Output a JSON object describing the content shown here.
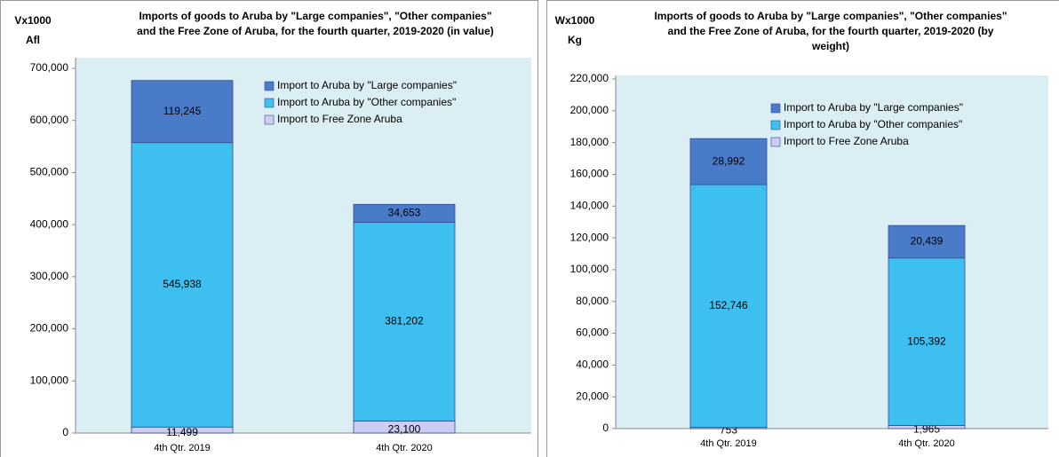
{
  "chart_data": [
    {
      "type": "stacked_bar",
      "title": "Imports of goods to Aruba by \"Large companies\", \"Other companies\"\nand the Free Zone of Aruba, for the fourth quarter, 2019-2020 (in value)",
      "y_label": "Vx1000\nAfl",
      "categories": [
        "4th Qtr. 2019",
        "4th Qtr. 2020"
      ],
      "series": [
        {
          "name": "Import to Free Zone Aruba",
          "color": "#ccccf5",
          "values": [
            11499,
            23100
          ],
          "value_labels": [
            "11,499",
            "23,100"
          ]
        },
        {
          "name": "Import to Aruba by \"Other companies\"",
          "color": "#3dbff0",
          "values": [
            545938,
            381202
          ],
          "value_labels": [
            "545,938",
            "381,202"
          ]
        },
        {
          "name": "Import to Aruba by \"Large companies\"",
          "color": "#4a7bc8",
          "values": [
            119245,
            34653
          ],
          "value_labels": [
            "119,245",
            "34,653"
          ]
        }
      ],
      "ylim": [
        0,
        700000
      ],
      "yticks": [
        0,
        {
          "value": 100000,
          "label": "100,000"
        },
        {
          "value": 200000,
          "label": "200,000"
        },
        {
          "value": 300000,
          "label": "300,000"
        },
        {
          "value": 400000,
          "label": "400,000"
        },
        {
          "value": 500000,
          "label": "500,000"
        },
        {
          "value": 600000,
          "label": "600,000"
        },
        {
          "value": 700000,
          "label": "700,000"
        }
      ],
      "legend": "upper right"
    },
    {
      "type": "stacked_bar",
      "title": "Imports of goods to Aruba by \"Large companies\", \"Other companies\"\nand the Free Zone of Aruba, for the fourth quarter, 2019-2020 (by\nweight)",
      "y_label": "Wx1000\nKg",
      "categories": [
        "4th Qtr. 2019",
        "4th Qtr. 2020"
      ],
      "series": [
        {
          "name": "Import to Free Zone Aruba",
          "color": "#ccccf5",
          "values": [
            753,
            1965
          ],
          "value_labels": [
            "753",
            "1,965"
          ]
        },
        {
          "name": "Import to Aruba by \"Other companies\"",
          "color": "#3dbff0",
          "values": [
            152746,
            105392
          ],
          "value_labels": [
            "152,746",
            "105,392"
          ]
        },
        {
          "name": "Import to Aruba by \"Large companies\"",
          "color": "#4a7bc8",
          "values": [
            28992,
            20439
          ],
          "value_labels": [
            "28,992",
            "20,439"
          ]
        }
      ],
      "ylim": [
        0,
        220000
      ],
      "yticks": [
        0,
        {
          "value": 20000,
          "label": "20,000"
        },
        {
          "value": 40000,
          "label": "40,000"
        },
        {
          "value": 60000,
          "label": "60,000"
        },
        {
          "value": 80000,
          "label": "80,000"
        },
        {
          "value": 100000,
          "label": "100,000"
        },
        {
          "value": 120000,
          "label": "120,000"
        },
        {
          "value": 140000,
          "label": "140,000"
        },
        {
          "value": 160000,
          "label": "160,000"
        },
        {
          "value": 180000,
          "label": "180,000"
        },
        {
          "value": 200000,
          "label": "200,000"
        },
        {
          "value": 220000,
          "label": "220,000"
        }
      ],
      "legend": "upper right"
    }
  ]
}
